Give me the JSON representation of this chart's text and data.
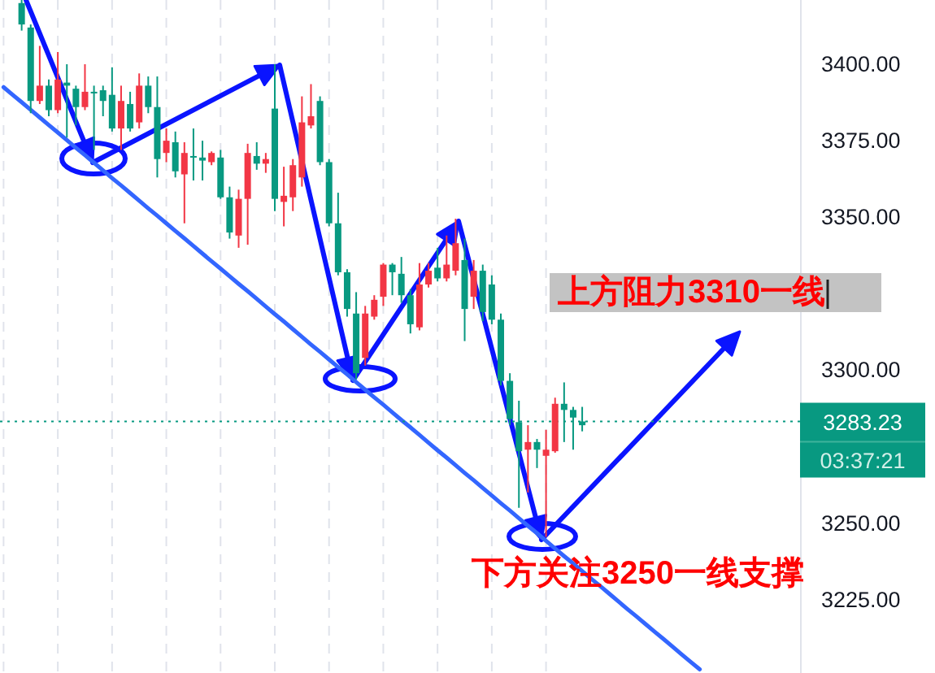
{
  "chart_data": {
    "type": "candlestick",
    "categories": [
      null,
      null,
      null,
      null,
      null,
      null,
      null,
      null,
      null,
      null,
      null,
      null,
      null,
      null,
      null,
      null,
      null,
      null,
      null,
      null,
      null,
      null,
      null,
      null,
      null,
      null,
      null,
      null,
      null,
      null,
      null,
      null,
      null,
      null,
      null,
      null,
      null,
      null,
      null,
      null,
      null,
      null,
      null,
      null,
      null,
      null,
      null,
      null,
      null,
      null,
      null,
      null,
      null,
      null,
      null,
      null,
      null,
      null,
      null,
      null,
      null,
      null,
      null,
      null,
      null,
      null,
      null,
      null,
      null,
      null,
      null,
      null,
      null,
      null,
      null,
      null,
      null,
      null,
      null,
      null,
      null,
      null,
      null,
      null,
      null,
      null,
      null,
      null,
      null
    ],
    "series": [
      {
        "ohlc": [
          null,
          null,
          [
            3413,
            3421,
            3411,
            3420
          ],
          [
            3388,
            3413,
            3384,
            3412
          ],
          [
            3393,
            3406,
            3387,
            3388
          ],
          [
            3385,
            3395,
            3383,
            3393
          ],
          [
            3395,
            3404,
            3384,
            3385
          ],
          [
            3393,
            3400,
            3376,
            3394
          ],
          [
            3386,
            3393,
            3380,
            3392
          ],
          [
            3391,
            3400,
            3385,
            3386
          ],
          [
            3390.5,
            3393,
            3372,
            3391
          ],
          [
            3388,
            3393,
            3383,
            3391.5
          ],
          [
            3379,
            3399,
            3378,
            3390
          ],
          [
            3388,
            3393,
            3372,
            3379
          ],
          [
            3379,
            3391,
            3378,
            3387
          ],
          [
            3393,
            3397,
            3379,
            3381
          ],
          [
            3386,
            3396,
            3384,
            3393
          ],
          [
            3369,
            3396,
            3363,
            3386
          ],
          [
            3375,
            3379,
            3368,
            3371
          ],
          [
            3365,
            3378,
            3363,
            3374.5
          ],
          [
            3371,
            3374.5,
            3348,
            3364
          ],
          [
            3369.5,
            3379,
            3362,
            3370
          ],
          [
            3368.5,
            3375,
            3362,
            3369.5
          ],
          [
            3371,
            3371.5,
            3367,
            3368
          ],
          [
            3356.5,
            3372,
            3356,
            3369.5
          ],
          [
            3345,
            3360,
            3343,
            3356.5
          ],
          [
            3356,
            3359,
            3340,
            3344
          ],
          [
            3371,
            3374,
            3341,
            3356
          ],
          [
            3367.5,
            3374.5,
            3365.5,
            3370
          ],
          [
            3369,
            3371,
            3364.5,
            3367.5
          ],
          [
            3356,
            3400,
            3352,
            3385.5
          ],
          [
            3357,
            3366.5,
            3347,
            3355
          ],
          [
            3367,
            3369,
            3352,
            3356.5
          ],
          [
            3381,
            3389.5,
            3360,
            3363
          ],
          [
            3383,
            3393.5,
            3379,
            3380
          ],
          [
            3368,
            3389.5,
            3367,
            3388
          ],
          [
            3348,
            3369,
            3347,
            3368
          ],
          [
            3332,
            3358,
            3331,
            3348
          ],
          [
            3320,
            3333,
            3317.5,
            3332
          ],
          [
            3299,
            3325.5,
            3297,
            3318.5
          ],
          [
            3318.5,
            3321,
            3301.5,
            3304
          ],
          [
            3323,
            3324.5,
            3316.5,
            3317.5
          ],
          [
            3334.5,
            3335,
            3321,
            3324
          ],
          [
            3332,
            3335,
            3324.5,
            3334.5
          ],
          [
            3324.5,
            3337,
            3322,
            3331.5
          ],
          [
            3315,
            3326.5,
            3312,
            3324.5
          ],
          [
            3328,
            3335,
            3313,
            3314
          ],
          [
            3332.5,
            3335,
            3327,
            3328
          ],
          [
            3330,
            3340,
            3329,
            3333.5
          ],
          [
            3334.5,
            3344,
            3329,
            3330
          ],
          [
            3341.5,
            3349.5,
            3331,
            3332.5
          ],
          [
            3320,
            3343,
            3309.5,
            3336
          ],
          [
            3332.5,
            3336,
            3320,
            3324
          ],
          [
            3319,
            3334.5,
            3316,
            3332.5
          ],
          [
            3316.5,
            3331,
            3315,
            3328
          ],
          [
            3296.5,
            3318.5,
            3295,
            3316.5
          ],
          [
            3284,
            3299,
            3282,
            3296.5
          ],
          [
            3273.5,
            3290,
            3255,
            3283
          ],
          [
            3276.5,
            3282,
            3260,
            3274
          ],
          [
            3274,
            3277.5,
            3268,
            3276.5
          ],
          [
            3274,
            3280.5,
            3245.5,
            3272
          ],
          [
            3289,
            3291,
            3273,
            3273.5
          ],
          [
            3287,
            3296,
            3276.5,
            3289
          ],
          [
            3284.5,
            3288,
            3274,
            3287
          ],
          [
            3282,
            3288,
            3280,
            3283.23
          ],
          null,
          null,
          null,
          null,
          null,
          null,
          null,
          null,
          null,
          null,
          null,
          null,
          null,
          null,
          null,
          null,
          null,
          null,
          null,
          null,
          null,
          null,
          null,
          null
        ],
        "colors": [
          null,
          null,
          "#089981",
          "#089981",
          "#f23645",
          "#089981",
          "#f23645",
          "#089981",
          "#089981",
          "#f23645",
          "#089981",
          "#089981",
          "#089981",
          "#f23645",
          "#089981",
          "#f23645",
          "#089981",
          "#089981",
          "#f23645",
          "#089981",
          "#f23645",
          "#089981",
          "#089981",
          "#f23645",
          "#089981",
          "#089981",
          "#f23645",
          "#f23645",
          "#089981",
          "#f23645",
          "#089981",
          "#f23645",
          "#f23645",
          "#f23645",
          "#f23645",
          "#089981",
          "#089981",
          "#089981",
          "#089981",
          "#089981",
          "#f23645",
          "#f23645",
          "#f23645",
          "#089981",
          "#089981",
          "#089981",
          "#f23645",
          "#f23645",
          "#089981",
          "#f23645",
          "#f23645",
          "#089981",
          "#f23645",
          "#089981",
          "#089981",
          "#089981",
          "#089981",
          "#089981",
          "#f23645",
          "#089981",
          "#f23645",
          "#f23645",
          "#089981",
          "#089981",
          "#089981",
          null,
          null,
          null,
          null,
          null,
          null,
          null,
          null,
          null,
          null,
          null,
          null,
          null,
          null,
          null,
          null,
          null,
          null,
          null,
          null,
          null,
          null,
          null,
          null
        ]
      },
      {
        "type": "line",
        "color": "#3366ff",
        "values": [
          3392.5,
          3390.0,
          3387.6,
          3385.1,
          3382.6,
          3380.1,
          3377.7,
          3375.2,
          3372.7,
          3370.3,
          3367.8,
          3365.3,
          3362.8,
          3360.4,
          3357.9,
          3355.4,
          3352.9,
          3350.5,
          3348.0,
          3345.5,
          3343.1,
          3340.6,
          3338.1,
          3335.6,
          3333.2,
          3330.7,
          3328.2,
          3325.8,
          3323.3,
          3320.8,
          3318.3,
          3315.9,
          3313.4,
          3310.9,
          3308.4,
          3306.0,
          3303.5,
          3301.0,
          3298.6,
          3296.1,
          3293.6,
          3291.1,
          3288.7,
          3286.2,
          3283.7,
          3281.3,
          3278.8,
          3276.3,
          3273.8,
          3271.4,
          3268.9,
          3266.4,
          3264.0,
          3261.5,
          3259.0,
          3256.5,
          3254.1,
          3251.6,
          3249.1,
          3246.7,
          3244.2,
          3241.7,
          3239.2,
          3236.8,
          3234.3,
          3231.8,
          3229.4,
          3226.9,
          3224.4,
          3221.9,
          3219.5,
          3217.0,
          3214.5,
          3212.1,
          3209.6,
          3207.1,
          3204.6,
          3202.2,
          null,
          null,
          null,
          null,
          null,
          null,
          null,
          null,
          null,
          null,
          null
        ]
      }
    ],
    "ylim": [
      3201,
      3421
    ],
    "yticks": [
      {
        "value": 3400,
        "label": "3400.00"
      },
      {
        "value": 3375,
        "label": "3375.00"
      },
      {
        "value": 3350,
        "label": "3350.00"
      },
      {
        "value": 3300,
        "label": "3300.00"
      },
      {
        "value": 3250,
        "label": "3250.00"
      },
      {
        "value": 3225,
        "label": "3225.00"
      }
    ],
    "tick_labels": "y",
    "grid": "x",
    "ref_lines": [
      {
        "axis": "y",
        "value": 3283.23,
        "label": "3283.23",
        "color": "#089981",
        "line_style": "dotted"
      }
    ],
    "annotations": [
      "上方阻力3310一线",
      "下方关注3250一线支撑",
      "03:37:21"
    ]
  }
}
